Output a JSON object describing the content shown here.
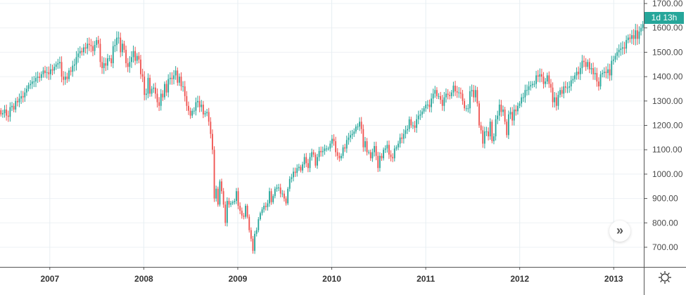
{
  "chart_data": {
    "type": "candlestick",
    "title": "",
    "xlabel": "",
    "ylabel": "",
    "interval": "weekly",
    "x_range": [
      2006.47,
      2013.32
    ],
    "ylim": [
      630,
      1730
    ],
    "grid": true,
    "colors": {
      "up": "#26a69a",
      "down": "#ef5350"
    },
    "wick_pct": 0.012,
    "x_ticks": [
      "2007",
      "2008",
      "2009",
      "2010",
      "2011",
      "2012",
      "2013"
    ],
    "x_tick_values": [
      2007,
      2008,
      2009,
      2010,
      2011,
      2012,
      2013
    ],
    "y_ticks": [
      "700.00",
      "800.00",
      "900.00",
      "1000.00",
      "1100.00",
      "1200.00",
      "1300.00",
      "1400.00",
      "1500.00",
      "1600.00",
      "1700.00"
    ],
    "y_tick_values": [
      700,
      800,
      900,
      1000,
      1100,
      1200,
      1300,
      1400,
      1500,
      1600,
      1700
    ],
    "first_open": 1262,
    "closes": [
      1245,
      1250,
      1265,
      1240,
      1235,
      1275,
      1280,
      1265,
      1300,
      1295,
      1310,
      1320,
      1315,
      1335,
      1350,
      1365,
      1370,
      1380,
      1380,
      1395,
      1400,
      1395,
      1410,
      1425,
      1415,
      1418,
      1410,
      1430,
      1425,
      1440,
      1450,
      1455,
      1460,
      1400,
      1387,
      1400,
      1390,
      1425,
      1420,
      1445,
      1450,
      1480,
      1495,
      1505,
      1500,
      1520,
      1515,
      1535,
      1530,
      1525,
      1505,
      1530,
      1550,
      1535,
      1460,
      1435,
      1455,
      1445,
      1475,
      1475,
      1455,
      1525,
      1530,
      1560,
      1560,
      1500,
      1535,
      1510,
      1455,
      1440,
      1460,
      1480,
      1505,
      1465,
      1485,
      1470,
      1410,
      1400,
      1325,
      1330,
      1395,
      1330,
      1350,
      1355,
      1330,
      1295,
      1280,
      1330,
      1315,
      1370,
      1335,
      1390,
      1395,
      1390,
      1405,
      1425,
      1375,
      1400,
      1360,
      1360,
      1320,
      1280,
      1260,
      1240,
      1260,
      1260,
      1295,
      1300,
      1275,
      1285,
      1245,
      1250,
      1255,
      1215,
      1165,
      1100,
      900,
      940,
      875,
      970,
      930,
      875,
      800,
      890,
      875,
      880,
      885,
      890,
      930,
      870,
      850,
      830,
      825,
      870,
      825,
      770,
      735,
      685,
      755,
      770,
      815,
      840,
      855,
      870,
      865,
      880,
      930,
      885,
      910,
      940,
      945,
      945,
      920,
      920,
      900,
      880,
      940,
      980,
      987,
      1010,
      1005,
      1025,
      1030,
      1015,
      1040,
      1070,
      1045,
      1025,
      1070,
      1090,
      1080,
      1035,
      1070,
      1095,
      1090,
      1095,
      1105,
      1105,
      1105,
      1125,
      1145,
      1135,
      1090,
      1075,
      1065,
      1075,
      1110,
      1105,
      1140,
      1150,
      1160,
      1165,
      1175,
      1195,
      1195,
      1215,
      1185,
      1110,
      1135,
      1090,
      1090,
      1065,
      1090,
      1115,
      1075,
      1025,
      1075,
      1065,
      1100,
      1105,
      1120,
      1080,
      1070,
      1065,
      1105,
      1110,
      1125,
      1150,
      1145,
      1165,
      1180,
      1185,
      1225,
      1200,
      1200,
      1190,
      1225,
      1240,
      1245,
      1257,
      1270,
      1285,
      1285,
      1275,
      1310,
      1330,
      1345,
      1320,
      1320,
      1305,
      1280,
      1315,
      1330,
      1325,
      1320,
      1335,
      1363,
      1340,
      1335,
      1335,
      1330,
      1300,
      1270,
      1270,
      1270,
      1340,
      1345,
      1315,
      1345,
      1290,
      1200,
      1180,
      1125,
      1175,
      1175,
      1155,
      1215,
      1135,
      1155,
      1225,
      1240,
      1285,
      1255,
      1265,
      1215,
      1160,
      1245,
      1255,
      1220,
      1265,
      1258,
      1280,
      1290,
      1315,
      1315,
      1345,
      1345,
      1360,
      1365,
      1370,
      1370,
      1405,
      1400,
      1410,
      1400,
      1370,
      1380,
      1405,
      1370,
      1355,
      1295,
      1315,
      1280,
      1325,
      1345,
      1330,
      1360,
      1355,
      1355,
      1360,
      1385,
      1390,
      1405,
      1420,
      1410,
      1435,
      1465,
      1460,
      1440,
      1460,
      1430,
      1435,
      1410,
      1415,
      1380,
      1360,
      1410,
      1415,
      1420,
      1415,
      1430,
      1405,
      1465,
      1470,
      1485,
      1500,
      1510,
      1515,
      1520,
      1515,
      1550,
      1560,
      1555,
      1570,
      1555,
      1590,
      1555,
      1585,
      1600,
      1615
    ]
  },
  "countdown_label": "1d 13h",
  "scroll_button_glyph": "»",
  "icons": {
    "settings": "gear-icon",
    "scroll": "double-chevron-right-icon"
  }
}
